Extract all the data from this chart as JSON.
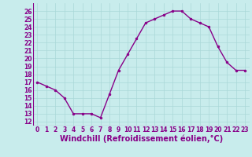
{
  "x": [
    0,
    1,
    2,
    3,
    4,
    5,
    6,
    7,
    8,
    9,
    10,
    11,
    12,
    13,
    14,
    15,
    16,
    17,
    18,
    19,
    20,
    21,
    22,
    23
  ],
  "y": [
    17.0,
    16.5,
    16.0,
    15.0,
    13.0,
    13.0,
    13.0,
    12.5,
    15.5,
    18.5,
    20.5,
    22.5,
    24.5,
    25.0,
    25.5,
    26.0,
    26.0,
    25.0,
    24.5,
    24.0,
    21.5,
    19.5,
    18.5,
    18.5
  ],
  "line_color": "#880088",
  "marker": "o",
  "markersize": 2.0,
  "linewidth": 1.0,
  "xlabel": "Windchill (Refroidissement éolien,°C)",
  "xlabel_fontsize": 7,
  "xlim": [
    -0.5,
    23.5
  ],
  "ylim": [
    11.5,
    27
  ],
  "yticks": [
    12,
    13,
    14,
    15,
    16,
    17,
    18,
    19,
    20,
    21,
    22,
    23,
    24,
    25,
    26
  ],
  "xticks": [
    0,
    1,
    2,
    3,
    4,
    5,
    6,
    7,
    8,
    9,
    10,
    11,
    12,
    13,
    14,
    15,
    16,
    17,
    18,
    19,
    20,
    21,
    22,
    23
  ],
  "tick_fontsize": 5.5,
  "tick_color": "#880088",
  "background_color": "#c8ecec",
  "grid_color": "#aad8d8",
  "grid_linewidth": 0.5
}
